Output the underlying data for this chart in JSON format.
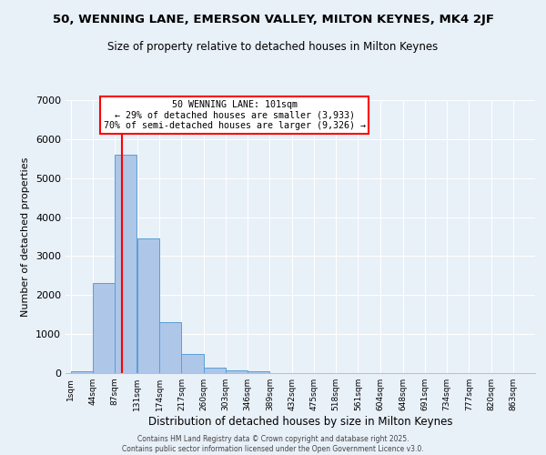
{
  "title1": "50, WENNING LANE, EMERSON VALLEY, MILTON KEYNES, MK4 2JF",
  "title2": "Size of property relative to detached houses in Milton Keynes",
  "xlabel": "Distribution of detached houses by size in Milton Keynes",
  "ylabel": "Number of detached properties",
  "bin_edges": [
    1,
    44,
    87,
    131,
    174,
    217,
    260,
    303,
    346,
    389,
    432,
    475,
    518,
    561,
    604,
    648,
    691,
    734,
    777,
    820,
    863
  ],
  "bar_heights": [
    50,
    2300,
    5600,
    3450,
    1300,
    480,
    150,
    70,
    50,
    0,
    0,
    0,
    0,
    0,
    0,
    0,
    0,
    0,
    0,
    0
  ],
  "bar_color": "#aec6e8",
  "bar_edge_color": "#5a9fd4",
  "red_line_x": 101,
  "annotation_title": "50 WENNING LANE: 101sqm",
  "annotation_line1": "← 29% of detached houses are smaller (3,933)",
  "annotation_line2": "70% of semi-detached houses are larger (9,326) →",
  "bg_color": "#e8f0f8",
  "footer1": "Contains HM Land Registry data © Crown copyright and database right 2025.",
  "footer2": "Contains public sector information licensed under the Open Government Licence v3.0.",
  "ylim": [
    0,
    7000
  ],
  "yticks": [
    0,
    1000,
    2000,
    3000,
    4000,
    5000,
    6000,
    7000
  ]
}
